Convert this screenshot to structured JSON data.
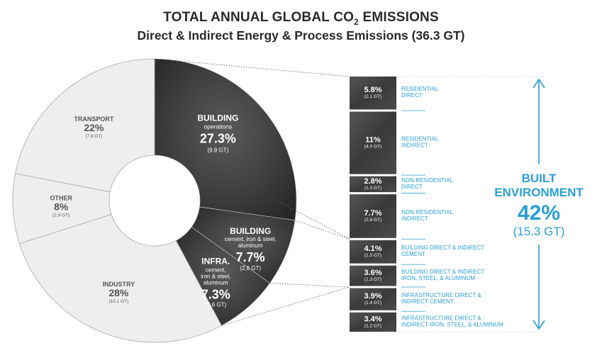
{
  "title": {
    "main": "TOTAL ANNUAL GLOBAL CO",
    "subscript": "2",
    "main_suffix": " EMISSIONS",
    "subtitle": "Direct & Indirect Energy & Process Emissions (36.3 GT)"
  },
  "colors": {
    "dark": "#3d3d3d",
    "light": "#eeeeee",
    "accent": "#2a9fd6",
    "text_dark": "#555555"
  },
  "chart_data": {
    "type": "pie",
    "total_gt": 36.3,
    "slices": [
      {
        "name": "BUILDING",
        "sub": "operations",
        "pct": "27.3%",
        "gt": "(9.9 GT)",
        "value": 27.3,
        "shade": "dark"
      },
      {
        "name": "BUILDING",
        "sub": "cement, iron & steel, aluminum",
        "pct": "7.7%",
        "gt": "(2.8 GT)",
        "value": 7.7,
        "shade": "dark"
      },
      {
        "name": "INFRA.",
        "sub": "cement, iron & steel, aluminum",
        "pct": "7.3%",
        "gt": "(2.6 GT)",
        "value": 7.3,
        "shade": "dark"
      },
      {
        "name": "INDUSTRY",
        "sub": "",
        "pct": "28%",
        "gt": "(10.1 GT)",
        "value": 28,
        "shade": "light"
      },
      {
        "name": "OTHER",
        "sub": "",
        "pct": "8%",
        "gt": "(2.9 GT)",
        "value": 8,
        "shade": "light"
      },
      {
        "name": "TRANSPORT",
        "sub": "",
        "pct": "22%",
        "gt": "(7.9 GT)",
        "value": 22,
        "shade": "light"
      }
    ],
    "breakdown": [
      {
        "pct": "5.8%",
        "gt": "(2.1 GT)",
        "label_lines": [
          "RESIDENTIAL",
          "DIRECT"
        ],
        "value": 5.8
      },
      {
        "pct": "11%",
        "gt": "(4.0 GT)",
        "label_lines": [
          "RESIDENTIAL",
          "INDIRECT"
        ],
        "value": 11
      },
      {
        "pct": "2.8%",
        "gt": "(1.0 GT)",
        "label_lines": [
          "NON-RESIDENTIAL",
          "DIRECT"
        ],
        "value": 2.8
      },
      {
        "pct": "7.7%",
        "gt": "(2.8 GT)",
        "label_lines": [
          "NON-RESIDENTIAL",
          "INDIRECT"
        ],
        "value": 7.7
      },
      {
        "pct": "4.1%",
        "gt": "(1.5 GT)",
        "label_lines": [
          "BUILDING DIRECT & INDIRECT",
          "CEMENT"
        ],
        "value": 4.1
      },
      {
        "pct": "3.6%",
        "gt": "(1.3 GT)",
        "label_lines": [
          "BUILDING DIRECT & INDIRECT",
          "IRON, STEEL, & ALUMINUM"
        ],
        "value": 3.6
      },
      {
        "pct": "3.9%",
        "gt": "(1.4 GT)",
        "label_lines": [
          "INFRASTRUCTURE DIRECT &",
          "INDIRECT CEMENT"
        ],
        "value": 3.9
      },
      {
        "pct": "3.4%",
        "gt": "(1.2 GT)",
        "label_lines": [
          "INFRASTRUCTURE DIRECT &",
          "INDIRECT IRON, STEEL, & ALUMINUM"
        ],
        "value": 3.4
      }
    ],
    "built_environment": {
      "line1": "BUILT",
      "line2": "ENVIRONMENT",
      "pct": "42%",
      "gt": "(15.3 GT)"
    }
  }
}
